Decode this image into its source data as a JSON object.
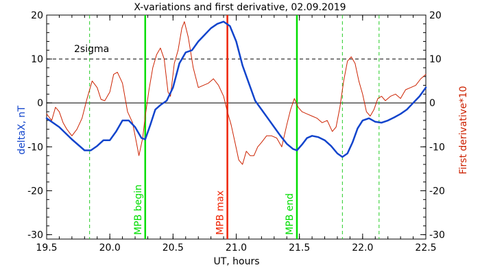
{
  "chart_data": {
    "type": "line",
    "title": "X-variations and first derivative, 02.09.2019",
    "xlabel": "UT, hours",
    "ylabel_left": "deltaX, nT",
    "ylabel_right": "First derivative*10",
    "xlim": [
      19.5,
      22.5
    ],
    "ylim": [
      -31,
      20
    ],
    "x_ticks": [
      "19.5",
      "20.0",
      "20.5",
      "21.0",
      "21.5",
      "22.0",
      "22.5"
    ],
    "y_ticks_left": [
      "-30",
      "-20",
      "-10",
      "0",
      "10",
      "20"
    ],
    "y_ticks_right": [
      "-30",
      "-20",
      "-10",
      "0",
      "10",
      "20"
    ],
    "threshold": {
      "label": "2sigma",
      "value": 10
    },
    "zero_line": 0,
    "markers": [
      {
        "x": 19.84,
        "label": "",
        "color": "#22cc22",
        "style": "dashed"
      },
      {
        "x": 20.28,
        "label": "MPB begin",
        "color": "#00dd00",
        "style": "solid"
      },
      {
        "x": 20.93,
        "label": "MPB max",
        "color": "#ee2200",
        "style": "solid"
      },
      {
        "x": 21.48,
        "label": "MPB end",
        "color": "#00dd00",
        "style": "solid"
      },
      {
        "x": 21.84,
        "label": "",
        "color": "#22cc22",
        "style": "dashed"
      },
      {
        "x": 22.13,
        "label": "",
        "color": "#22cc22",
        "style": "dashed"
      }
    ],
    "series": [
      {
        "name": "deltaX, nT",
        "color": "#1144cc",
        "x": [
          19.5,
          19.6,
          19.7,
          19.8,
          19.85,
          19.9,
          19.95,
          20.0,
          20.05,
          20.1,
          20.15,
          20.2,
          20.25,
          20.28,
          20.32,
          20.36,
          20.4,
          20.45,
          20.5,
          20.55,
          20.6,
          20.65,
          20.7,
          20.75,
          20.8,
          20.85,
          20.9,
          20.95,
          21.0,
          21.05,
          21.1,
          21.15,
          21.2,
          21.25,
          21.3,
          21.35,
          21.4,
          21.45,
          21.48,
          21.52,
          21.56,
          21.6,
          21.65,
          21.7,
          21.75,
          21.8,
          21.84,
          21.88,
          21.92,
          21.96,
          22.0,
          22.05,
          22.1,
          22.15,
          22.2,
          22.25,
          22.3,
          22.35,
          22.4,
          22.45,
          22.5
        ],
        "values": [
          -3.5,
          -5.5,
          -8.3,
          -10.8,
          -10.8,
          -9.8,
          -8.5,
          -8.5,
          -6.5,
          -4.0,
          -4.0,
          -5.5,
          -8.0,
          -8.3,
          -5.0,
          -1.5,
          -0.5,
          0.5,
          3.5,
          9.0,
          11.5,
          12.0,
          14.0,
          15.5,
          17.0,
          18.0,
          18.5,
          17.5,
          14.0,
          8.5,
          4.5,
          0.5,
          -1.5,
          -3.5,
          -5.5,
          -7.5,
          -9.3,
          -10.5,
          -10.8,
          -9.5,
          -8.0,
          -7.5,
          -7.8,
          -8.5,
          -9.8,
          -11.5,
          -12.3,
          -11.5,
          -9.0,
          -5.8,
          -4.0,
          -3.5,
          -4.3,
          -4.5,
          -4.0,
          -3.3,
          -2.5,
          -1.5,
          0.0,
          1.5,
          3.5
        ]
      },
      {
        "name": "First derivative*10",
        "color": "#cc2200",
        "x": [
          19.5,
          19.54,
          19.57,
          19.6,
          19.63,
          19.66,
          19.7,
          19.74,
          19.78,
          19.82,
          19.86,
          19.9,
          19.93,
          19.96,
          20.0,
          20.03,
          20.06,
          20.1,
          20.14,
          20.18,
          20.21,
          20.23,
          20.26,
          20.28,
          20.31,
          20.34,
          20.37,
          20.4,
          20.43,
          20.46,
          20.48,
          20.51,
          20.54,
          20.57,
          20.59,
          20.62,
          20.66,
          20.7,
          20.74,
          20.78,
          20.82,
          20.86,
          20.9,
          20.93,
          20.96,
          20.99,
          21.02,
          21.05,
          21.08,
          21.11,
          21.14,
          21.17,
          21.2,
          21.24,
          21.28,
          21.32,
          21.36,
          21.4,
          21.43,
          21.46,
          21.49,
          21.52,
          21.56,
          21.6,
          21.64,
          21.68,
          21.72,
          21.76,
          21.79,
          21.82,
          21.85,
          21.88,
          21.91,
          21.94,
          21.97,
          22.0,
          22.03,
          22.06,
          22.09,
          22.12,
          22.15,
          22.18,
          22.22,
          22.26,
          22.3,
          22.34,
          22.38,
          22.42,
          22.46,
          22.5
        ],
        "values": [
          -2.5,
          -4.0,
          -1.0,
          -2.0,
          -4.5,
          -6.0,
          -7.5,
          -6.0,
          -3.5,
          1.0,
          5.0,
          3.5,
          0.8,
          0.5,
          2.5,
          6.5,
          7.0,
          4.5,
          -2.0,
          -4.5,
          -9.0,
          -12.0,
          -8.0,
          -3.0,
          3.0,
          8.0,
          11.0,
          12.5,
          10.0,
          2.5,
          1.5,
          9.0,
          12.0,
          17.0,
          18.5,
          15.0,
          8.0,
          3.5,
          4.0,
          4.5,
          5.5,
          4.0,
          1.5,
          -2.0,
          -5.0,
          -9.0,
          -13.0,
          -14.0,
          -11.0,
          -12.0,
          -12.0,
          -10.0,
          -9.0,
          -7.5,
          -7.5,
          -8.0,
          -10.0,
          -5.0,
          -1.5,
          1.0,
          -1.0,
          -2.0,
          -2.5,
          -3.0,
          -3.5,
          -4.5,
          -4.0,
          -6.5,
          -5.5,
          -1.0,
          5.0,
          9.5,
          10.5,
          9.0,
          5.0,
          2.0,
          -2.0,
          -3.0,
          -1.5,
          1.0,
          1.5,
          0.5,
          1.5,
          2.0,
          1.0,
          3.0,
          3.5,
          4.0,
          5.5,
          6.5
        ]
      }
    ]
  }
}
